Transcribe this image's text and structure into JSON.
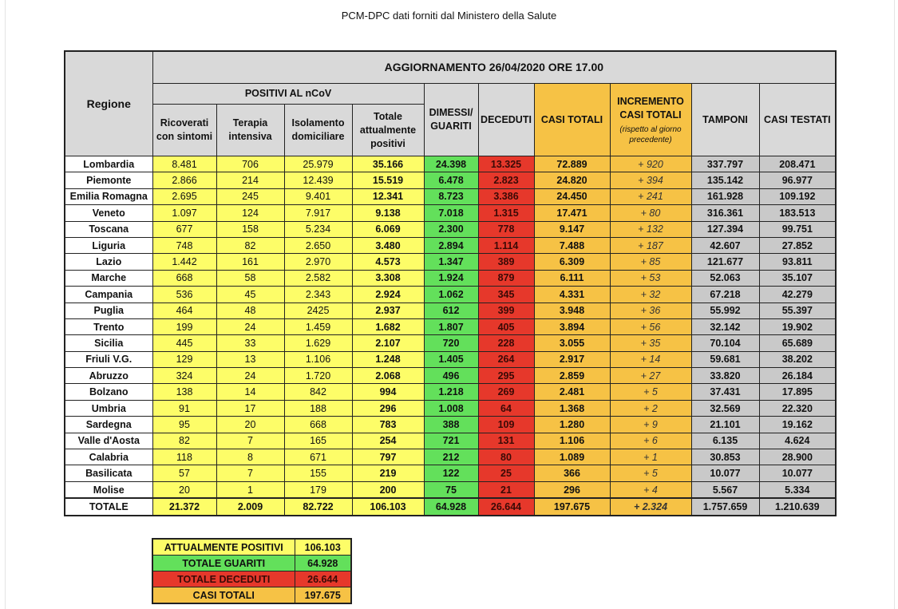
{
  "doc_title": "PCM-DPC dati forniti dal Ministero della Salute",
  "header": {
    "regione": "Regione",
    "aggiornamento": "AGGIORNAMENTO 26/04/2020 ORE 17.00",
    "positivi_group": "POSITIVI AL nCoV",
    "ricoverati": "Ricoverati con sintomi",
    "terapia": "Terapia intensiva",
    "isolamento": "Isolamento domiciliare",
    "totale_pos": "Totale attualmente positivi",
    "dimessi": "DIMESSI/ GUARITI",
    "deceduti": "DECEDUTI",
    "casi_totali": "CASI TOTALI",
    "incremento": "INCREMENTO CASI TOTALI",
    "incremento_sub": "(rispetto al giorno precedente)",
    "tamponi": "TAMPONI",
    "casi_testati": "CASI TESTATI"
  },
  "colors": {
    "positivi": "#fdfd68",
    "guariti": "#63e05b",
    "deceduti": "#e6382b",
    "casi_totali": "#f6c245",
    "header": "#d9d9d9",
    "tamponi": "#c9c9c9"
  },
  "rows": [
    [
      "Lombardia",
      "8.481",
      "706",
      "25.979",
      "35.166",
      "24.398",
      "13.325",
      "72.889",
      "+ 920",
      "337.797",
      "208.471"
    ],
    [
      "Piemonte",
      "2.866",
      "214",
      "12.439",
      "15.519",
      "6.478",
      "2.823",
      "24.820",
      "+ 394",
      "135.142",
      "96.977"
    ],
    [
      "Emilia Romagna",
      "2.695",
      "245",
      "9.401",
      "12.341",
      "8.723",
      "3.386",
      "24.450",
      "+ 241",
      "161.928",
      "109.192"
    ],
    [
      "Veneto",
      "1.097",
      "124",
      "7.917",
      "9.138",
      "7.018",
      "1.315",
      "17.471",
      "+ 80",
      "316.361",
      "183.513"
    ],
    [
      "Toscana",
      "677",
      "158",
      "5.234",
      "6.069",
      "2.300",
      "778",
      "9.147",
      "+ 132",
      "127.394",
      "99.751"
    ],
    [
      "Liguria",
      "748",
      "82",
      "2.650",
      "3.480",
      "2.894",
      "1.114",
      "7.488",
      "+ 187",
      "42.607",
      "27.852"
    ],
    [
      "Lazio",
      "1.442",
      "161",
      "2.970",
      "4.573",
      "1.347",
      "389",
      "6.309",
      "+ 85",
      "121.677",
      "93.811"
    ],
    [
      "Marche",
      "668",
      "58",
      "2.582",
      "3.308",
      "1.924",
      "879",
      "6.111",
      "+ 53",
      "52.063",
      "35.107"
    ],
    [
      "Campania",
      "536",
      "45",
      "2.343",
      "2.924",
      "1.062",
      "345",
      "4.331",
      "+ 32",
      "67.218",
      "42.279"
    ],
    [
      "Puglia",
      "464",
      "48",
      "2425",
      "2.937",
      "612",
      "399",
      "3.948",
      "+ 36",
      "55.992",
      "55.397"
    ],
    [
      "Trento",
      "199",
      "24",
      "1.459",
      "1.682",
      "1.807",
      "405",
      "3.894",
      "+ 56",
      "32.142",
      "19.902"
    ],
    [
      "Sicilia",
      "445",
      "33",
      "1.629",
      "2.107",
      "720",
      "228",
      "3.055",
      "+ 35",
      "70.104",
      "65.689"
    ],
    [
      "Friuli V.G.",
      "129",
      "13",
      "1.106",
      "1.248",
      "1.405",
      "264",
      "2.917",
      "+ 14",
      "59.681",
      "38.202"
    ],
    [
      "Abruzzo",
      "324",
      "24",
      "1.720",
      "2.068",
      "496",
      "295",
      "2.859",
      "+ 27",
      "33.820",
      "26.184"
    ],
    [
      "Bolzano",
      "138",
      "14",
      "842",
      "994",
      "1.218",
      "269",
      "2.481",
      "+ 5",
      "37.431",
      "17.895"
    ],
    [
      "Umbria",
      "91",
      "17",
      "188",
      "296",
      "1.008",
      "64",
      "1.368",
      "+ 2",
      "32.569",
      "22.320"
    ],
    [
      "Sardegna",
      "95",
      "20",
      "668",
      "783",
      "388",
      "109",
      "1.280",
      "+ 9",
      "21.101",
      "19.162"
    ],
    [
      "Valle d'Aosta",
      "82",
      "7",
      "165",
      "254",
      "721",
      "131",
      "1.106",
      "+ 6",
      "6.135",
      "4.624"
    ],
    [
      "Calabria",
      "118",
      "8",
      "671",
      "797",
      "212",
      "80",
      "1.089",
      "+ 1",
      "30.853",
      "28.900"
    ],
    [
      "Basilicata",
      "57",
      "7",
      "155",
      "219",
      "122",
      "25",
      "366",
      "+ 5",
      "10.077",
      "10.077"
    ],
    [
      "Molise",
      "20",
      "1",
      "179",
      "200",
      "75",
      "21",
      "296",
      "+ 4",
      "5.567",
      "5.334"
    ]
  ],
  "totale": [
    "TOTALE",
    "21.372",
    "2.009",
    "82.722",
    "106.103",
    "64.928",
    "26.644",
    "197.675",
    "+ 2.324",
    "1.757.659",
    "1.210.639"
  ],
  "summary": [
    {
      "label": "ATTUALMENTE POSITIVI",
      "value": "106.103"
    },
    {
      "label": "TOTALE GUARITI",
      "value": "64.928"
    },
    {
      "label": "TOTALE DECEDUTI",
      "value": "26.644"
    },
    {
      "label": "CASI TOTALI",
      "value": "197.675"
    }
  ]
}
